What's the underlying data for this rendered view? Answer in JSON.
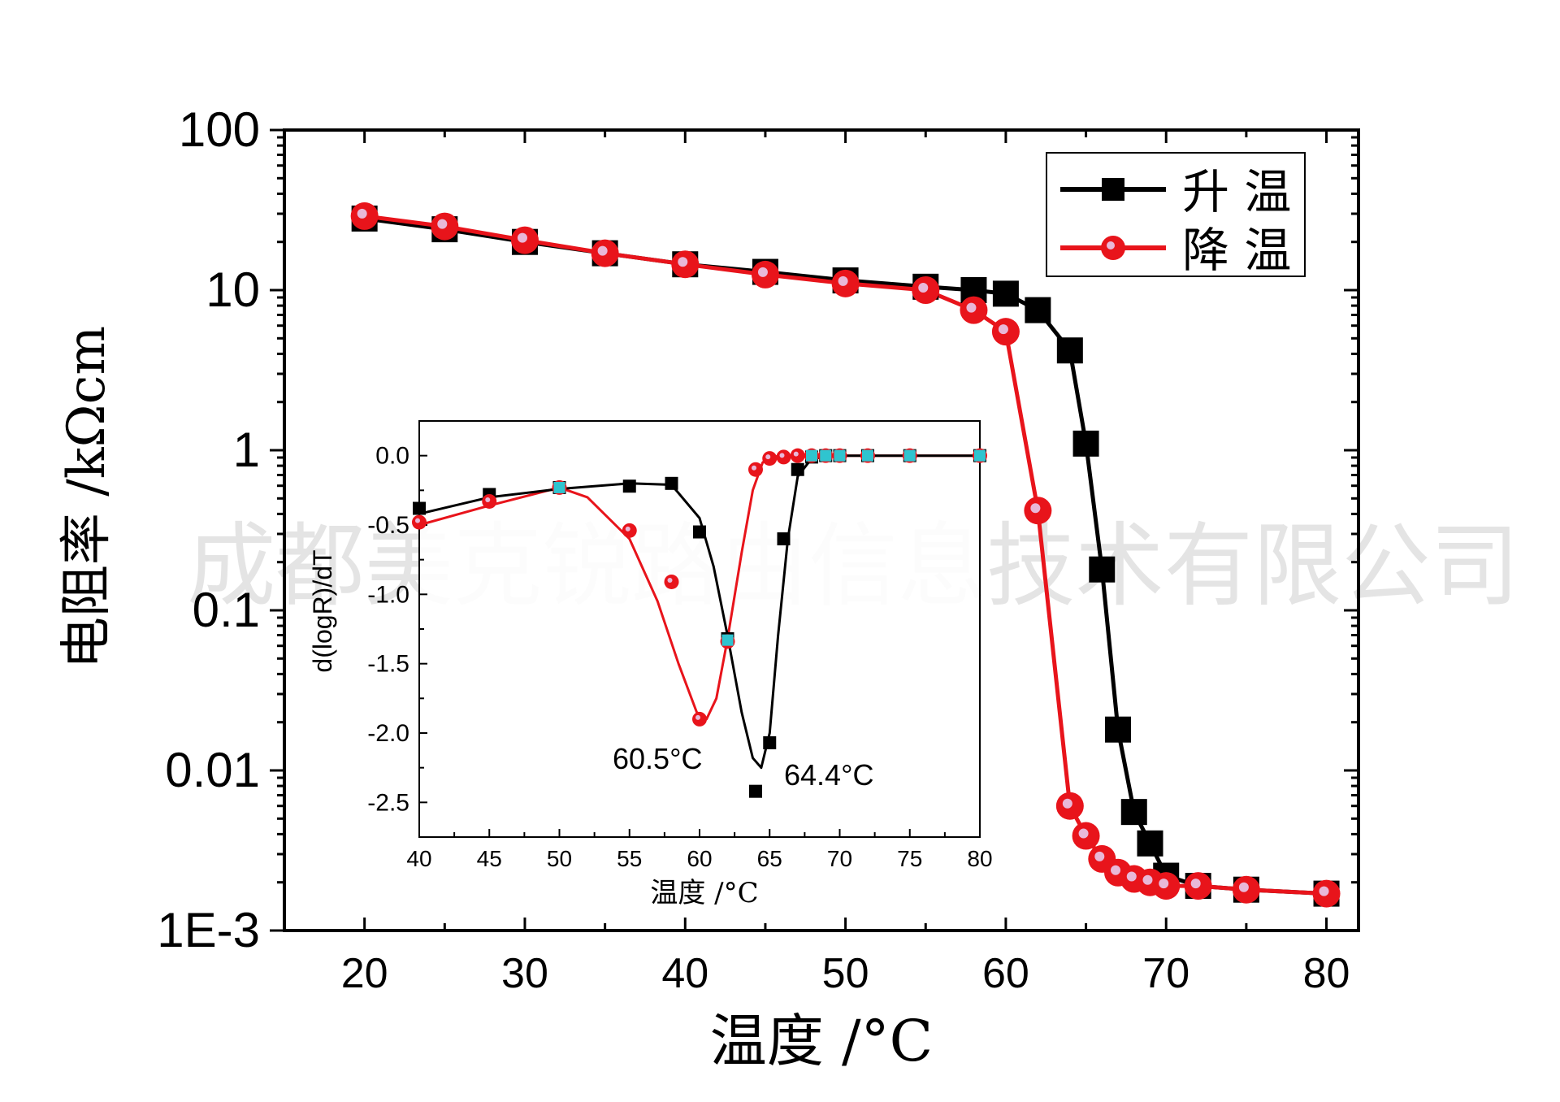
{
  "watermark": "成都美克锐路由信息技术有限公司",
  "colors": {
    "heating": "#000000",
    "cooling": "#e8141b",
    "derivative_marker": "#2fc4cf"
  },
  "chart_data": [
    {
      "type": "scatter",
      "title": "",
      "xlabel": "温度 /°C",
      "ylabel": "电阻率 /kΩcm",
      "yscale": "log",
      "xlim": [
        15,
        82
      ],
      "ylim": [
        0.001,
        100
      ],
      "x_ticks": [
        20,
        30,
        40,
        50,
        60,
        70,
        80
      ],
      "y_ticks": [
        0.001,
        0.01,
        0.1,
        1,
        10,
        100
      ],
      "y_tick_labels": [
        "1E-3",
        "0.01",
        "0.1",
        "1",
        "10",
        "100"
      ],
      "legend_position": "top-right",
      "series": [
        {
          "name": "升 温",
          "marker": "square",
          "x": [
            20,
            25,
            30,
            35,
            40,
            45,
            50,
            55,
            58,
            60,
            62,
            64,
            65,
            66,
            67,
            68,
            69,
            70,
            72,
            75,
            80
          ],
          "y": [
            28,
            24,
            20,
            17,
            14.5,
            13,
            11.5,
            10.5,
            10,
            9.5,
            7.5,
            4.2,
            1.1,
            0.18,
            0.018,
            0.0055,
            0.0035,
            0.0022,
            0.0019,
            0.0018,
            0.0017
          ]
        },
        {
          "name": "降 温",
          "marker": "circle",
          "x": [
            20,
            25,
            30,
            35,
            40,
            45,
            50,
            55,
            58,
            60,
            62,
            64,
            65,
            66,
            67,
            68,
            69,
            70,
            72,
            75,
            80
          ],
          "y": [
            29,
            25,
            20.5,
            17,
            14.5,
            12.5,
            11,
            10,
            7.5,
            5.5,
            0.42,
            0.006,
            0.0039,
            0.0028,
            0.0023,
            0.0021,
            0.002,
            0.0019,
            0.0019,
            0.0018,
            0.0017
          ]
        }
      ]
    },
    {
      "type": "line",
      "title": "",
      "xlabel": "温度 /°C",
      "ylabel": "d(logR)/dT",
      "xlim": [
        40,
        80
      ],
      "ylim": [
        -2.75,
        0.25
      ],
      "x_ticks": [
        40,
        45,
        50,
        55,
        60,
        65,
        70,
        75,
        80
      ],
      "y_ticks": [
        0.0,
        -0.5,
        -1.0,
        -1.5,
        -2.0,
        -2.5
      ],
      "y_tick_labels": [
        "0.0",
        "-0.5",
        "-1.0",
        "-1.5",
        "-2.0",
        "-2.5"
      ],
      "annotations": [
        {
          "text": "60.5°C",
          "x": 60.5,
          "y": -1.9
        },
        {
          "text": "64.4°C",
          "x": 64.4,
          "y": -2.25
        }
      ],
      "series": [
        {
          "name": "升温",
          "marker": "square",
          "points_x": [
            40,
            45,
            50,
            55,
            58,
            60,
            62,
            64,
            65,
            66,
            67,
            68,
            69,
            70,
            72,
            75,
            80
          ],
          "points_y": [
            -0.38,
            -0.28,
            -0.23,
            -0.22,
            -0.2,
            -0.55,
            -1.32,
            -2.42,
            -2.07,
            -0.6,
            -0.1,
            -0.01,
            0.0,
            0.0,
            0.0,
            0.0,
            0.0
          ],
          "fit_x": [
            40,
            45,
            50,
            55,
            58,
            60,
            61,
            62,
            63,
            63.8,
            64.4,
            65,
            65.6,
            66.3,
            67,
            68,
            70,
            80
          ],
          "fit_y": [
            -0.42,
            -0.3,
            -0.24,
            -0.2,
            -0.21,
            -0.45,
            -0.8,
            -1.3,
            -1.85,
            -2.18,
            -2.25,
            -2.0,
            -1.3,
            -0.6,
            -0.15,
            -0.02,
            0.0,
            0.0
          ]
        },
        {
          "name": "降温",
          "marker": "circle",
          "points_x": [
            40,
            45,
            50,
            55,
            58,
            60,
            62,
            64,
            65,
            66,
            67,
            68,
            69,
            70,
            72,
            75,
            80
          ],
          "points_y": [
            -0.48,
            -0.33,
            -0.23,
            -0.54,
            -0.91,
            -1.9,
            -1.34,
            -0.1,
            -0.02,
            -0.01,
            0.0,
            0.0,
            0.0,
            0.0,
            0.0,
            0.0,
            0.0
          ],
          "fit_x": [
            40,
            45,
            50,
            52,
            55,
            57,
            58.5,
            59.8,
            60.5,
            61.2,
            62,
            63,
            63.8,
            64.5,
            65,
            66,
            70,
            80
          ],
          "fit_y": [
            -0.5,
            -0.36,
            -0.23,
            -0.3,
            -0.6,
            -1.05,
            -1.5,
            -1.85,
            -1.9,
            -1.75,
            -1.32,
            -0.7,
            -0.25,
            -0.05,
            -0.01,
            0.0,
            0.0,
            0.0
          ]
        }
      ]
    }
  ]
}
